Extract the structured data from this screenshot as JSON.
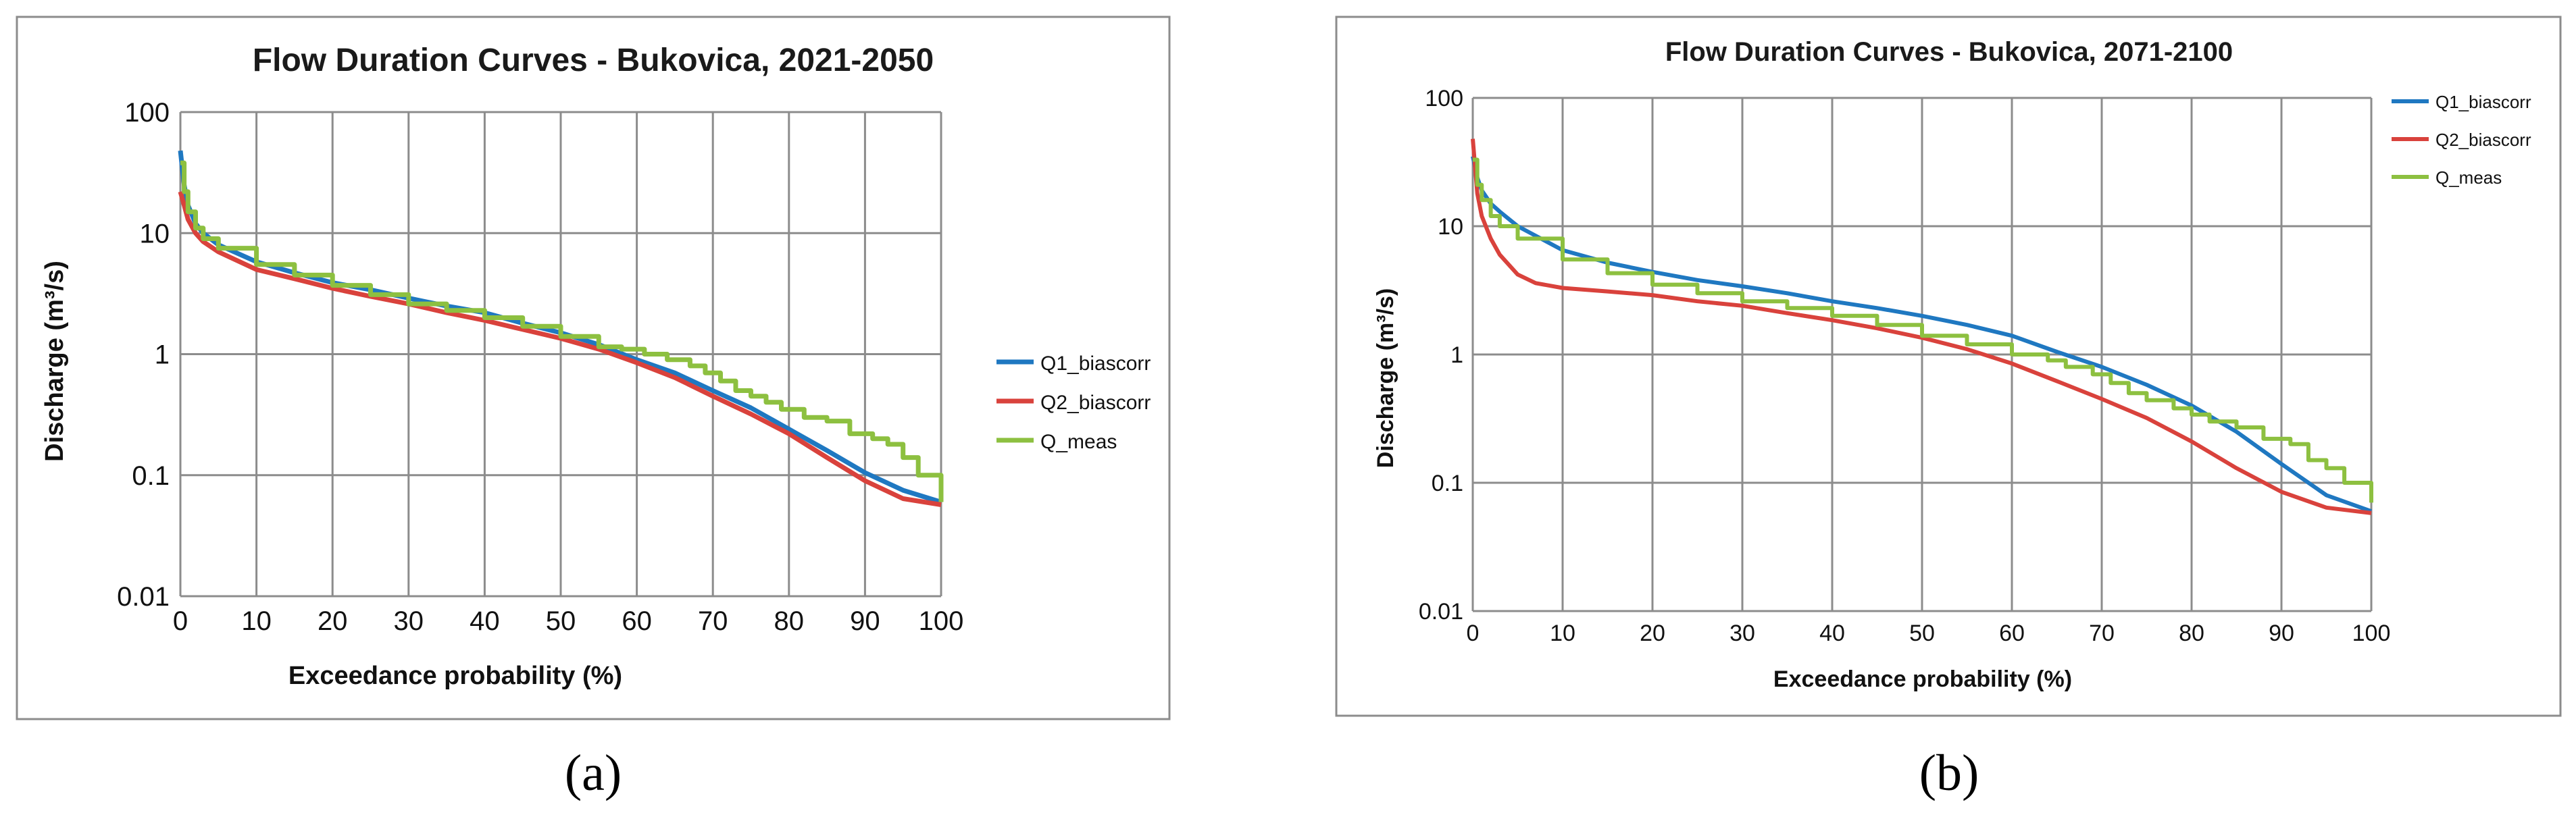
{
  "colors": {
    "Q1_biascorr": "#1f78c1",
    "Q2_biascorr": "#d9423c",
    "Q_meas": "#8dc040",
    "grid": "#8c8c8c",
    "frame": "#8c8c8c"
  },
  "chart_data": [
    {
      "type": "line",
      "caption": "(a)",
      "title": "Flow Duration Curves - Bukovica, 2021-2050",
      "xlabel": "Exceedance probability (%)",
      "ylabel": "Discharge (m³/s)",
      "xlim": [
        0,
        100
      ],
      "ylim": [
        0.01,
        100
      ],
      "yscale": "log",
      "grid": true,
      "legend_position": "right",
      "x_ticks": [
        "0",
        "10",
        "20",
        "30",
        "40",
        "50",
        "60",
        "70",
        "80",
        "90",
        "100"
      ],
      "y_ticks": [
        "0.01",
        "0.1",
        "1",
        "10",
        "100"
      ],
      "series": [
        {
          "name": "Q1_biascorr",
          "step": false,
          "points": [
            [
              0,
              48
            ],
            [
              0.5,
              25
            ],
            [
              1,
              17
            ],
            [
              2,
              12
            ],
            [
              3,
              10
            ],
            [
              5,
              8
            ],
            [
              10,
              5.8
            ],
            [
              15,
              4.7
            ],
            [
              20,
              3.9
            ],
            [
              25,
              3.4
            ],
            [
              30,
              2.9
            ],
            [
              35,
              2.5
            ],
            [
              40,
              2.2
            ],
            [
              45,
              1.8
            ],
            [
              50,
              1.5
            ],
            [
              55,
              1.2
            ],
            [
              60,
              0.9
            ],
            [
              65,
              0.7
            ],
            [
              70,
              0.5
            ],
            [
              75,
              0.36
            ],
            [
              80,
              0.24
            ],
            [
              85,
              0.16
            ],
            [
              90,
              0.105
            ],
            [
              95,
              0.075
            ],
            [
              100,
              0.06
            ]
          ]
        },
        {
          "name": "Q2_biascorr",
          "step": false,
          "points": [
            [
              0,
              22
            ],
            [
              0.5,
              17
            ],
            [
              1,
              13
            ],
            [
              2,
              10
            ],
            [
              3,
              8.5
            ],
            [
              5,
              7
            ],
            [
              10,
              5
            ],
            [
              15,
              4.2
            ],
            [
              20,
              3.5
            ],
            [
              25,
              3
            ],
            [
              30,
              2.6
            ],
            [
              35,
              2.2
            ],
            [
              40,
              1.9
            ],
            [
              45,
              1.6
            ],
            [
              50,
              1.35
            ],
            [
              55,
              1.1
            ],
            [
              60,
              0.85
            ],
            [
              65,
              0.64
            ],
            [
              70,
              0.45
            ],
            [
              75,
              0.32
            ],
            [
              80,
              0.22
            ],
            [
              85,
              0.14
            ],
            [
              90,
              0.09
            ],
            [
              95,
              0.064
            ],
            [
              100,
              0.057
            ]
          ]
        },
        {
          "name": "Q_meas",
          "step": true,
          "points": [
            [
              0,
              38
            ],
            [
              0.5,
              22
            ],
            [
              1,
              15
            ],
            [
              2,
              11
            ],
            [
              3,
              9
            ],
            [
              5,
              7.5
            ],
            [
              10,
              5.5
            ],
            [
              15,
              4.5
            ],
            [
              20,
              3.7
            ],
            [
              25,
              3.1
            ],
            [
              30,
              2.6
            ],
            [
              35,
              2.3
            ],
            [
              40,
              2
            ],
            [
              45,
              1.7
            ],
            [
              50,
              1.4
            ],
            [
              55,
              1.15
            ],
            [
              58,
              1.1
            ],
            [
              61,
              1
            ],
            [
              64,
              0.9
            ],
            [
              67,
              0.8
            ],
            [
              69,
              0.7
            ],
            [
              71,
              0.6
            ],
            [
              73,
              0.5
            ],
            [
              75,
              0.45
            ],
            [
              77,
              0.4
            ],
            [
              79,
              0.35
            ],
            [
              82,
              0.3
            ],
            [
              85,
              0.28
            ],
            [
              88,
              0.22
            ],
            [
              91,
              0.2
            ],
            [
              93,
              0.18
            ],
            [
              95,
              0.14
            ],
            [
              97,
              0.1
            ],
            [
              99,
              0.1
            ],
            [
              100,
              0.06
            ]
          ]
        }
      ]
    },
    {
      "type": "line",
      "caption": "(b)",
      "title": "Flow Duration Curves - Bukovica, 2071-2100",
      "xlabel": "Exceedance probability (%)",
      "ylabel": "Discharge (m³/s)",
      "xlim": [
        0,
        100
      ],
      "ylim": [
        0.01,
        100
      ],
      "yscale": "log",
      "grid": true,
      "legend_position": "top-right",
      "x_ticks": [
        "0",
        "10",
        "20",
        "30",
        "40",
        "50",
        "60",
        "70",
        "80",
        "90",
        "100"
      ],
      "y_ticks": [
        "0.01",
        "0.1",
        "1",
        "10",
        "100"
      ],
      "series": [
        {
          "name": "Q1_biascorr",
          "step": false,
          "points": [
            [
              0,
              35
            ],
            [
              0.5,
              24
            ],
            [
              1,
              19
            ],
            [
              2,
              15
            ],
            [
              3,
              13
            ],
            [
              5,
              10
            ],
            [
              10,
              6.5
            ],
            [
              15,
              5.2
            ],
            [
              20,
              4.4
            ],
            [
              25,
              3.8
            ],
            [
              30,
              3.4
            ],
            [
              35,
              3
            ],
            [
              40,
              2.6
            ],
            [
              45,
              2.3
            ],
            [
              50,
              2
            ],
            [
              55,
              1.7
            ],
            [
              60,
              1.4
            ],
            [
              65,
              1.05
            ],
            [
              70,
              0.8
            ],
            [
              75,
              0.58
            ],
            [
              80,
              0.4
            ],
            [
              85,
              0.25
            ],
            [
              90,
              0.14
            ],
            [
              95,
              0.08
            ],
            [
              100,
              0.06
            ]
          ]
        },
        {
          "name": "Q2_biascorr",
          "step": false,
          "points": [
            [
              0,
              48
            ],
            [
              0.5,
              18
            ],
            [
              1,
              12
            ],
            [
              2,
              8
            ],
            [
              3,
              6
            ],
            [
              5,
              4.2
            ],
            [
              7,
              3.6
            ],
            [
              10,
              3.3
            ],
            [
              15,
              3.1
            ],
            [
              20,
              2.9
            ],
            [
              25,
              2.6
            ],
            [
              30,
              2.4
            ],
            [
              35,
              2.1
            ],
            [
              40,
              1.85
            ],
            [
              45,
              1.6
            ],
            [
              50,
              1.35
            ],
            [
              55,
              1.1
            ],
            [
              60,
              0.85
            ],
            [
              65,
              0.62
            ],
            [
              70,
              0.45
            ],
            [
              75,
              0.32
            ],
            [
              80,
              0.21
            ],
            [
              85,
              0.13
            ],
            [
              90,
              0.085
            ],
            [
              95,
              0.064
            ],
            [
              100,
              0.058
            ]
          ]
        },
        {
          "name": "Q_meas",
          "step": true,
          "points": [
            [
              0,
              33
            ],
            [
              0.5,
              21
            ],
            [
              1,
              16
            ],
            [
              2,
              12
            ],
            [
              3,
              10
            ],
            [
              5,
              8
            ],
            [
              10,
              5.5
            ],
            [
              15,
              4.3
            ],
            [
              20,
              3.5
            ],
            [
              25,
              3
            ],
            [
              30,
              2.6
            ],
            [
              35,
              2.3
            ],
            [
              40,
              2
            ],
            [
              45,
              1.7
            ],
            [
              50,
              1.4
            ],
            [
              55,
              1.2
            ],
            [
              60,
              1
            ],
            [
              64,
              0.9
            ],
            [
              66,
              0.8
            ],
            [
              69,
              0.7
            ],
            [
              71,
              0.6
            ],
            [
              73,
              0.5
            ],
            [
              75,
              0.44
            ],
            [
              78,
              0.38
            ],
            [
              80,
              0.34
            ],
            [
              82,
              0.3
            ],
            [
              85,
              0.27
            ],
            [
              88,
              0.22
            ],
            [
              91,
              0.2
            ],
            [
              93,
              0.15
            ],
            [
              95,
              0.13
            ],
            [
              97,
              0.1
            ],
            [
              99,
              0.1
            ],
            [
              100,
              0.07
            ]
          ]
        }
      ]
    }
  ]
}
